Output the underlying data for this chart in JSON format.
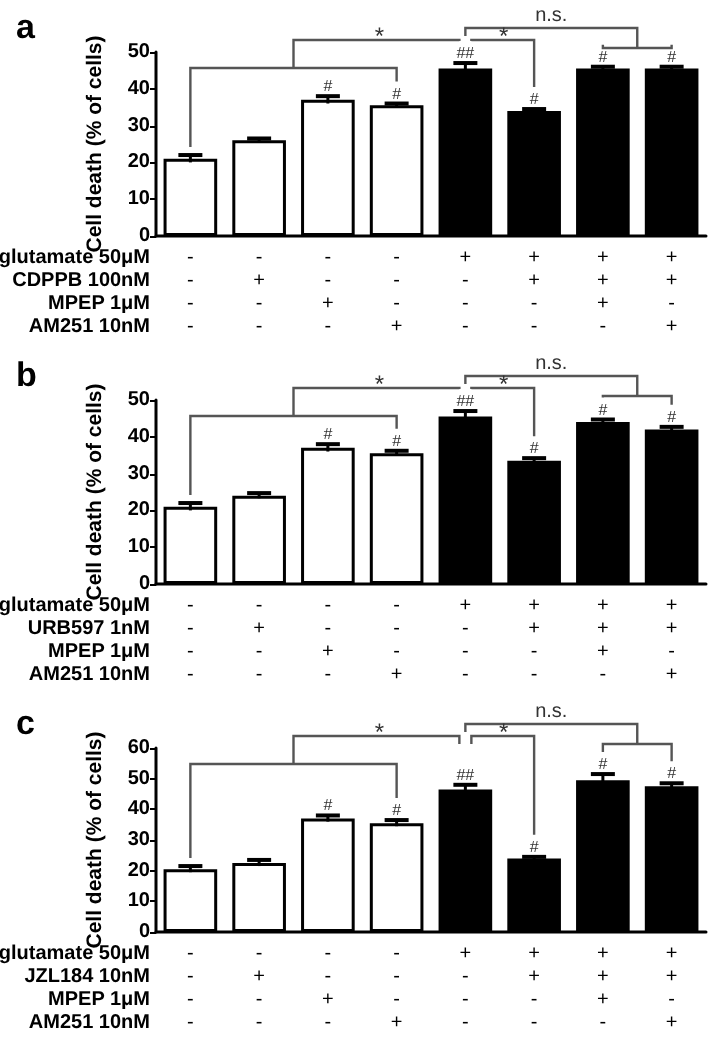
{
  "chart_data": [
    {
      "type": "bar",
      "title": "a",
      "ylabel": "Cell death (% of cells)",
      "categories": [
        "-\n-\n-\n-",
        "-\n+\n-\n-",
        "-\n-\n+\n-",
        "-\n-\n-\n+",
        "+\n-\n-\n-",
        "+\n+\n-\n-",
        "+\n+\n+\n-",
        "+\n+\n-\n+"
      ],
      "values": [
        21,
        26,
        37,
        35.5,
        45.5,
        34,
        45.5,
        45.5
      ],
      "errors": [
        1,
        0.5,
        1,
        0.5,
        1.5,
        0.5,
        0.5,
        0.5
      ],
      "value_labels": [
        null,
        null,
        "#",
        "#",
        "##",
        "#",
        "#",
        "#"
      ],
      "colors": [
        "#ffffff",
        "#ffffff",
        "#ffffff",
        "#ffffff",
        "#000000",
        "#000000",
        "#000000",
        "#000000"
      ],
      "ylim": [
        0,
        50
      ],
      "yticks": [
        0,
        10,
        20,
        30,
        40,
        50
      ],
      "grid": false,
      "annotations": [
        "*",
        "*",
        "n.s.",
        "glutamate 50μM",
        "CDPPB 100nM",
        "MPEP 1μM",
        "AM251 10nM"
      ]
    },
    {
      "type": "bar",
      "title": "b",
      "ylabel": "Cell death (% of cells)",
      "categories": [
        "-\n-\n-\n-",
        "-\n+\n-\n-",
        "-\n-\n+\n-",
        "-\n-\n-\n+",
        "+\n-\n-\n-",
        "+\n+\n-\n-",
        "+\n+\n+\n-",
        "+\n+\n-\n+"
      ],
      "values": [
        21,
        24,
        37,
        35.5,
        45.5,
        33.5,
        44,
        42
      ],
      "errors": [
        1,
        0.7,
        1,
        0.7,
        1.5,
        0.7,
        0.7,
        0.7
      ],
      "value_labels": [
        null,
        null,
        "#",
        "#",
        "##",
        "#",
        "#",
        "#"
      ],
      "colors": [
        "#ffffff",
        "#ffffff",
        "#ffffff",
        "#ffffff",
        "#000000",
        "#000000",
        "#000000",
        "#000000"
      ],
      "ylim": [
        0,
        50
      ],
      "yticks": [
        0,
        10,
        20,
        30,
        40,
        50
      ],
      "grid": false,
      "annotations": [
        "*",
        "*",
        "n.s.",
        "glutamate 50μM",
        "URB597 1nM",
        "MPEP 1μM",
        "AM251 10nM"
      ]
    },
    {
      "type": "bar",
      "title": "c",
      "ylabel": "Cell death (% of cells)",
      "categories": [
        "-\n-\n-\n-",
        "-\n+\n-\n-",
        "-\n-\n+\n-",
        "-\n-\n-\n+",
        "+\n-\n-\n-",
        "+\n+\n-\n-",
        "+\n+\n+\n-",
        "+\n+\n-\n+"
      ],
      "values": [
        20.5,
        22.5,
        37,
        35.5,
        46.5,
        24,
        49.5,
        47.5
      ],
      "errors": [
        1,
        1,
        1,
        1,
        1.5,
        0.5,
        2,
        1
      ],
      "value_labels": [
        null,
        null,
        "#",
        "#",
        "##",
        "#",
        "#",
        "#"
      ],
      "colors": [
        "#ffffff",
        "#ffffff",
        "#ffffff",
        "#ffffff",
        "#000000",
        "#000000",
        "#000000",
        "#000000"
      ],
      "ylim": [
        0,
        60
      ],
      "yticks": [
        0,
        10,
        20,
        30,
        40,
        50,
        60
      ],
      "grid": false,
      "annotations": [
        "*",
        "*",
        "n.s.",
        "glutamate 50μM",
        "JZL184 10nM",
        "MPEP 1μM",
        "AM251 10nM"
      ]
    }
  ]
}
